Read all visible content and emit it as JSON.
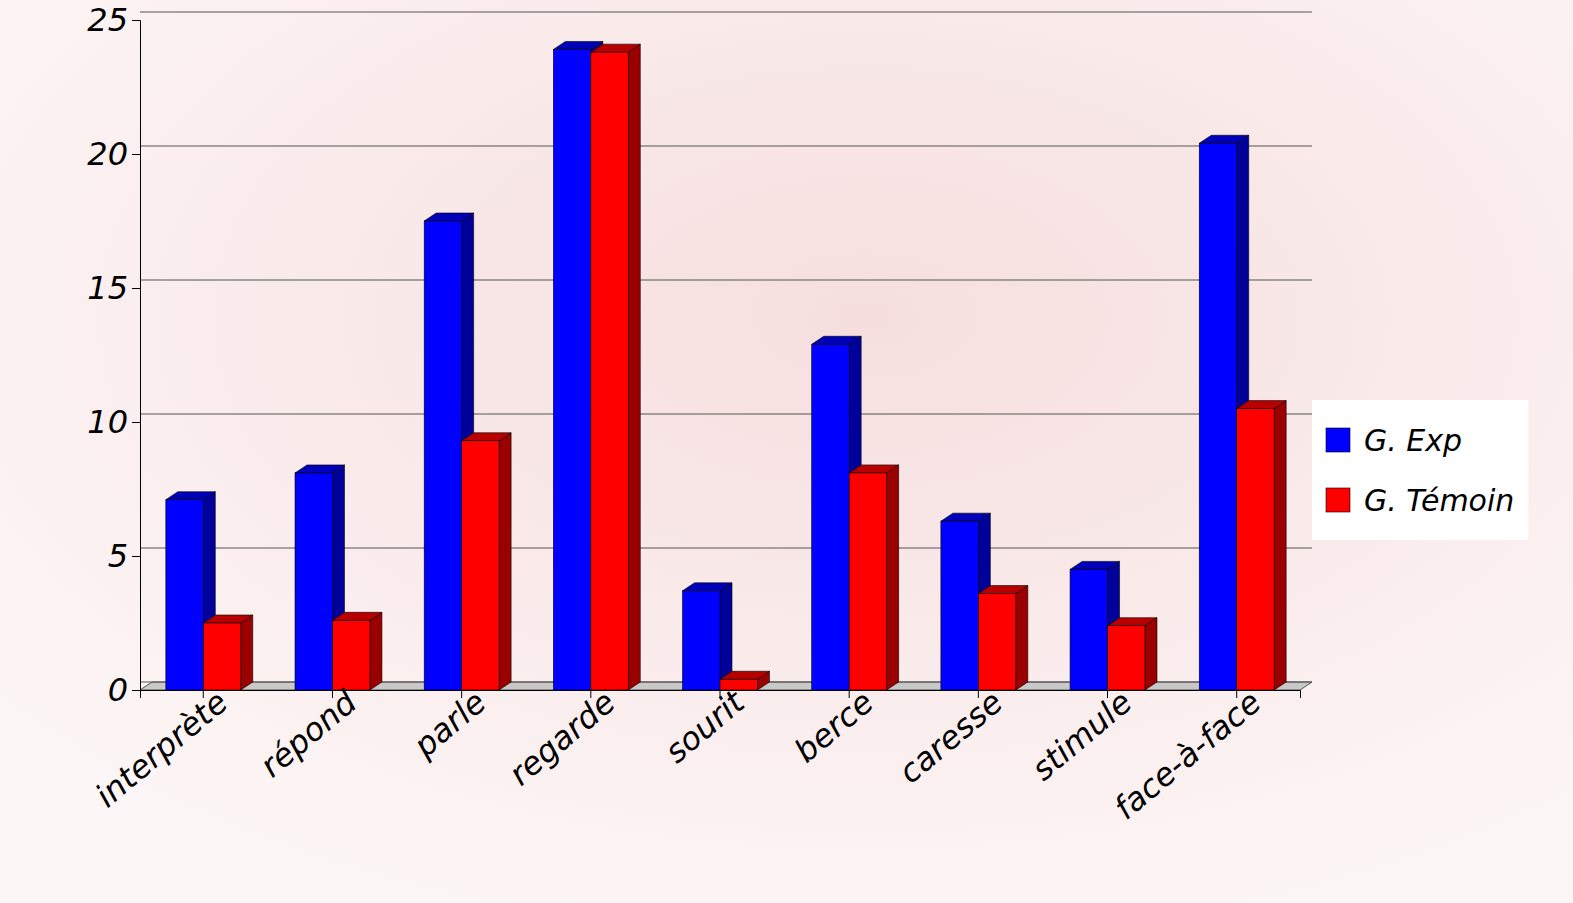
{
  "chart_data": {
    "type": "bar",
    "categories": [
      "interprète",
      "répond",
      "parle",
      "regarde",
      "sourit",
      "berce",
      "caresse",
      "stimule",
      "face-à-face"
    ],
    "series": [
      {
        "name": "G. Exp",
        "color": "#0000ff",
        "values": [
          7.1,
          8.1,
          17.5,
          23.9,
          3.7,
          12.9,
          6.3,
          4.5,
          20.4
        ]
      },
      {
        "name": "G. Témoin",
        "color": "#ff0000",
        "values": [
          2.5,
          2.6,
          9.3,
          23.8,
          0.4,
          8.1,
          3.6,
          2.4,
          10.5
        ]
      }
    ],
    "ylim": [
      0,
      25
    ],
    "yticks": [
      0,
      5,
      10,
      15,
      20,
      25
    ],
    "grid": true,
    "legend": "right"
  }
}
